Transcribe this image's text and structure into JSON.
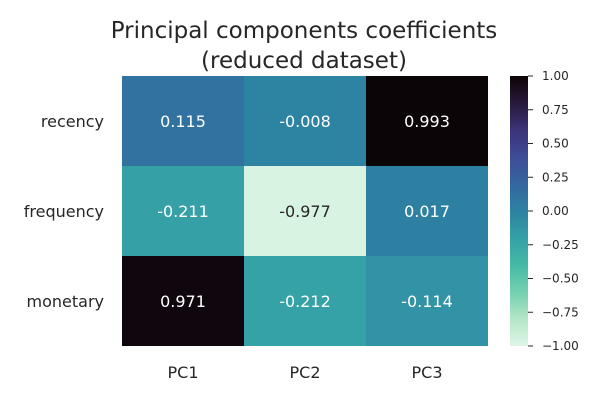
{
  "chart_data": {
    "type": "heatmap",
    "title_lines": [
      "Principal components coefficients",
      "(reduced dataset)"
    ],
    "x_categories": [
      "PC1",
      "PC2",
      "PC3"
    ],
    "y_categories": [
      "recency",
      "frequency",
      "monetary"
    ],
    "values": [
      [
        0.115,
        -0.008,
        0.993
      ],
      [
        -0.211,
        -0.977,
        0.017
      ],
      [
        0.971,
        -0.212,
        -0.114
      ]
    ],
    "value_labels": [
      [
        "0.115",
        "-0.008",
        "0.993"
      ],
      [
        "-0.211",
        "-0.977",
        "0.017"
      ],
      [
        "0.971",
        "-0.212",
        "-0.114"
      ]
    ],
    "colorbar": {
      "range": [
        -1.0,
        1.0
      ],
      "tick_values": [
        1.0,
        0.75,
        0.5,
        0.25,
        0.0,
        -0.25,
        -0.5,
        -0.75,
        -1.0
      ],
      "tick_labels": [
        "1.00",
        "0.75",
        "0.50",
        "0.25",
        "0.00",
        "−0.25",
        "−0.50",
        "−0.75",
        "−1.00"
      ],
      "colormap": "mako_r"
    }
  }
}
